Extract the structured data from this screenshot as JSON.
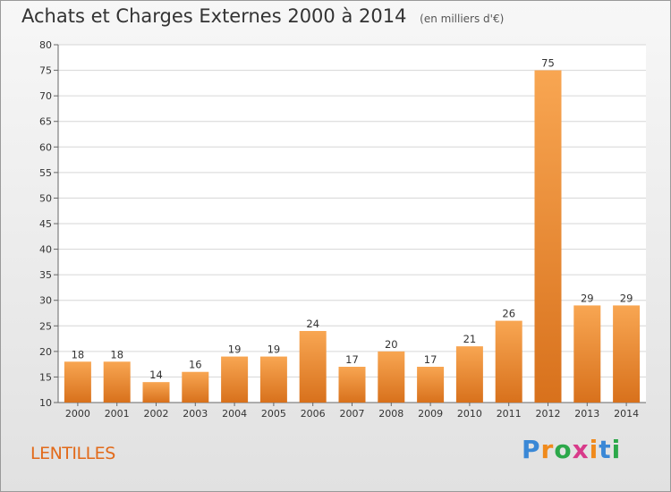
{
  "header": {
    "title": "Achats et Charges Externes 2000 à 2014",
    "unit": "(en milliers d'€)"
  },
  "footer": {
    "commune": "LENTILLES",
    "brand": "Proxiti"
  },
  "colors": {
    "bar_light": "#f8a652",
    "bar_dark": "#d8711c",
    "commune_text": "#e26a1a",
    "brand_letters": [
      "#3a88d6",
      "#f08a1c",
      "#2ca84a",
      "#d83a8a",
      "#f08a1c",
      "#3a88d6",
      "#2ca84a"
    ]
  },
  "chart_data": {
    "type": "bar",
    "title": "Achats et Charges Externes 2000 à 2014",
    "subtitle": "(en milliers d'€)",
    "xlabel": "",
    "ylabel": "",
    "categories": [
      "2000",
      "2001",
      "2002",
      "2003",
      "2004",
      "2005",
      "2006",
      "2007",
      "2008",
      "2009",
      "2010",
      "2011",
      "2012",
      "2013",
      "2014"
    ],
    "values": [
      18,
      18,
      14,
      16,
      19,
      19,
      24,
      17,
      20,
      17,
      21,
      26,
      75,
      29,
      29
    ],
    "ylim": [
      10,
      80
    ],
    "yticks": [
      10,
      15,
      20,
      25,
      30,
      35,
      40,
      45,
      50,
      55,
      60,
      65,
      70,
      75,
      80
    ],
    "grid": true,
    "legend": "none"
  }
}
